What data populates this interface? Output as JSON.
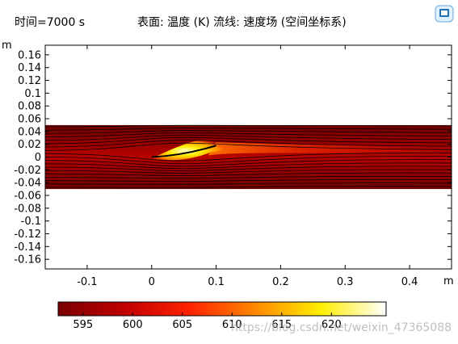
{
  "header": {
    "time_label": "时间=7000 s",
    "plot_title": "表面: 温度 (K)  流线: 速度场  (空间坐标系)"
  },
  "colors": {
    "dark_red": "#7a0000",
    "red": "#ff2200",
    "yellow": "#ffee00",
    "white": "#ffffff",
    "streamline": "#000000",
    "frame": "#000000"
  },
  "chart_data": {
    "type": "heatmap",
    "title": "表面: 温度 (K)  流线: 速度场  (空间坐标系)",
    "time": "时间=7000 s",
    "xlabel": "m",
    "ylabel": "m",
    "xlim": [
      -0.165,
      0.465
    ],
    "ylim": [
      -0.175,
      0.175
    ],
    "x_ticks": [
      -0.1,
      0,
      0.1,
      0.2,
      0.3,
      0.4
    ],
    "x_tick_labels": [
      "-0.1",
      "0",
      "0.1",
      "0.2",
      "0.3",
      "0.4"
    ],
    "y_ticks": [
      0.16,
      0.14,
      0.12,
      0.1,
      0.08,
      0.06,
      0.04,
      0.02,
      0,
      -0.02,
      -0.04,
      -0.06,
      -0.08,
      -0.1,
      -0.12,
      -0.14,
      -0.16
    ],
    "y_tick_labels": [
      "0.16",
      "0.14",
      "0.12",
      "0.1",
      "0.08",
      "0.06",
      "0.04",
      "0.02",
      "0",
      "-0.02",
      "-0.04",
      "-0.06",
      "-0.08",
      "-0.1",
      "-0.12",
      "-0.14",
      "-0.16"
    ],
    "channel": {
      "y_min": -0.05,
      "y_max": 0.05
    },
    "plate": {
      "x_start": 0.0,
      "x_end": 0.1,
      "y_start": 0.0,
      "y_end": 0.018
    },
    "streamline_count": 19,
    "colorbar": {
      "min": 592.5,
      "max": 625.5,
      "ticks": [
        595,
        600,
        605,
        610,
        615,
        620
      ],
      "tick_labels": [
        "595",
        "600",
        "605",
        "610",
        "615",
        "620"
      ],
      "colormap": [
        "#7a0000",
        "#c00000",
        "#ff2200",
        "#ff8800",
        "#ffee00",
        "#ffffff"
      ]
    }
  },
  "watermark": "https://blog.csdn.net/weixin_47365088"
}
